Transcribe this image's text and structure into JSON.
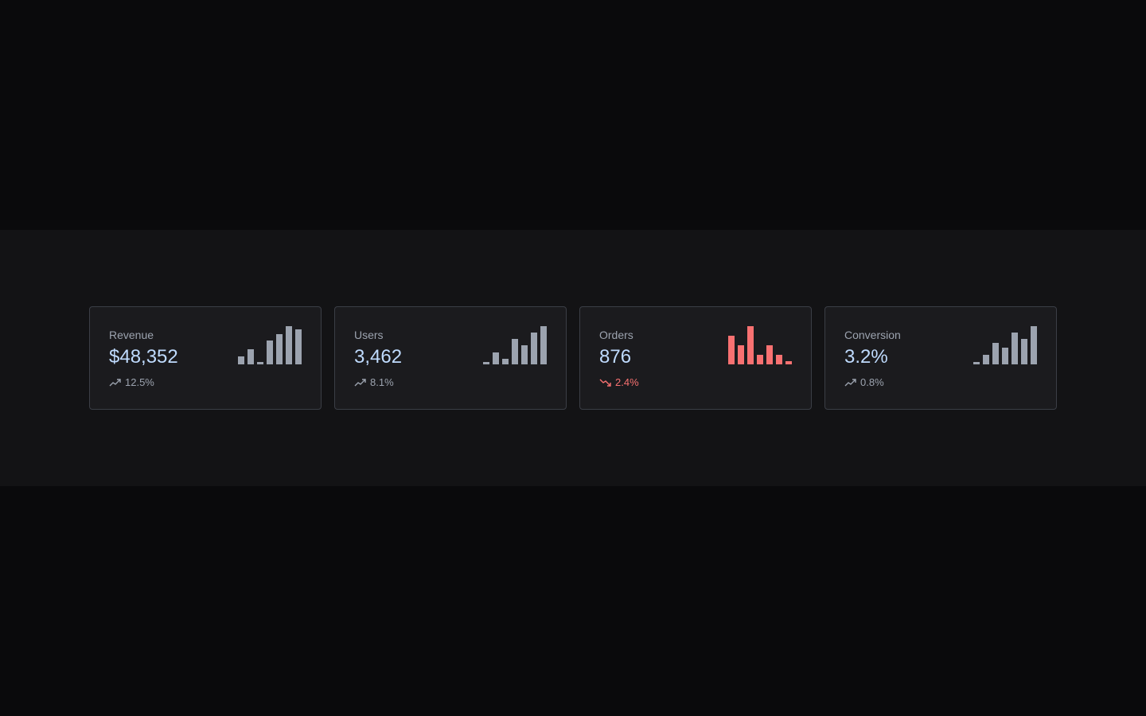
{
  "colors": {
    "up": "#9ca3af",
    "down": "#f87171",
    "value": "#bfdbfe"
  },
  "cards": [
    {
      "label": "Revenue",
      "value": "$48,352",
      "change": "12.5%",
      "trend": "up",
      "trend_icon": "trending-up-icon",
      "sparkline": [
        10,
        19,
        3,
        30,
        38,
        48,
        44
      ]
    },
    {
      "label": "Users",
      "value": "3,462",
      "change": "8.1%",
      "trend": "up",
      "trend_icon": "trending-up-icon",
      "sparkline": [
        3,
        15,
        7,
        32,
        24,
        40,
        48
      ]
    },
    {
      "label": "Orders",
      "value": "876",
      "change": "2.4%",
      "trend": "down",
      "trend_icon": "trending-down-icon",
      "sparkline": [
        36,
        24,
        48,
        12,
        24,
        12,
        4
      ]
    },
    {
      "label": "Conversion",
      "value": "3.2%",
      "change": "0.8%",
      "trend": "up",
      "trend_icon": "trending-up-icon",
      "sparkline": [
        3,
        12,
        27,
        21,
        40,
        32,
        48
      ]
    }
  ]
}
